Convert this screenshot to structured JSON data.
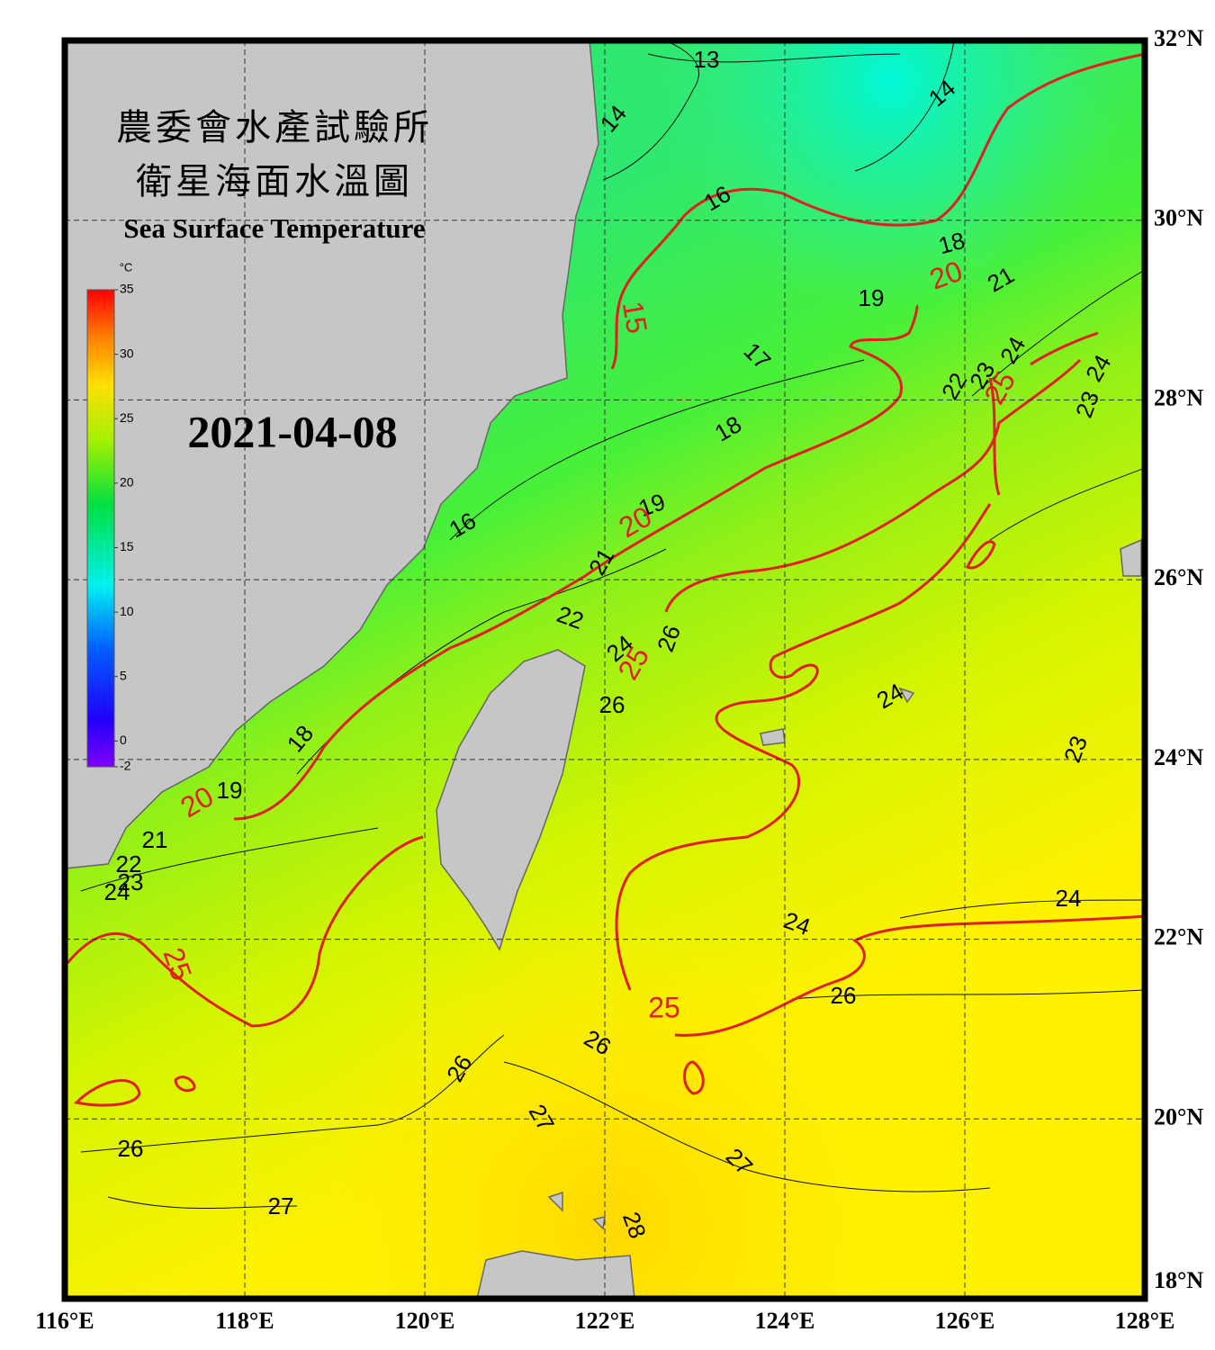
{
  "header": {
    "title_line_1": "農委會水產試驗所",
    "title_line_2": "衛星海面水溫圖",
    "title_en": "Sea Surface Temperature",
    "date": "2021-04-08"
  },
  "map": {
    "lonlim": [
      116,
      128
    ],
    "latlim": [
      18,
      32
    ],
    "lonticks": [
      {
        "value": 116,
        "label": "116°E"
      },
      {
        "value": 118,
        "label": "118°E"
      },
      {
        "value": 120,
        "label": "120°E"
      },
      {
        "value": 122,
        "label": "122°E"
      },
      {
        "value": 124,
        "label": "124°E"
      },
      {
        "value": 126,
        "label": "126°E"
      },
      {
        "value": 128,
        "label": "128°E"
      }
    ],
    "latticks": [
      {
        "value": 32,
        "label": "32°N"
      },
      {
        "value": 30,
        "label": "30°N"
      },
      {
        "value": 28,
        "label": "28°N"
      },
      {
        "value": 26,
        "label": "26°N"
      },
      {
        "value": 24,
        "label": "24°N"
      },
      {
        "value": 22,
        "label": "22°N"
      },
      {
        "value": 20,
        "label": "20°N"
      },
      {
        "value": 18,
        "label": "18°N"
      }
    ],
    "colorbar": {
      "unit": "°C",
      "range": [
        -2,
        35
      ],
      "ticks": [
        35,
        30,
        25,
        20,
        15,
        10,
        5,
        0,
        -2
      ]
    },
    "contour_labels": [
      13,
      14,
      14,
      16,
      18,
      20,
      21,
      19,
      15,
      17,
      24,
      23,
      22,
      25,
      24,
      23,
      18,
      19,
      20,
      16,
      21,
      22,
      24,
      25,
      26,
      26,
      24,
      18,
      23,
      19,
      20,
      21,
      22,
      23,
      24,
      24,
      24,
      25,
      26,
      25,
      26,
      26,
      27,
      26,
      27,
      27,
      28
    ]
  }
}
